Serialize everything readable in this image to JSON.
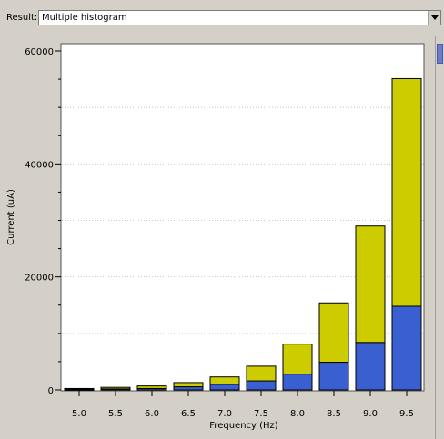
{
  "result": {
    "label": "Result:",
    "selected": "Multiple histogram"
  },
  "colors": {
    "panel_bg": "#d4d0c8",
    "plot_bg": "#ffffff",
    "series_base": "#3a5fd0",
    "series_top": "#cccc00",
    "scroll_thumb": "#6b7fc9"
  },
  "icons": {
    "dropdown": "chevron-down-icon"
  },
  "chart_data": {
    "type": "bar",
    "stacked": true,
    "title": "",
    "xlabel": "Frequency (Hz)",
    "ylabel": "Current (uA)",
    "categories": [
      "5.0",
      "5.5",
      "6.0",
      "6.5",
      "7.0",
      "7.5",
      "8.0",
      "8.5",
      "9.0",
      "9.5"
    ],
    "series": [
      {
        "values": [
          100,
          180,
          250,
          550,
          1000,
          1600,
          2800,
          4900,
          8400,
          14800
        ]
      },
      {
        "values": [
          150,
          270,
          450,
          750,
          1300,
          2600,
          5300,
          10500,
          20600,
          40300
        ]
      }
    ],
    "ylim": [
      0,
      60000
    ],
    "yticks": [
      "0",
      "20000",
      "40000",
      "60000"
    ],
    "grid": true,
    "legend": "none"
  }
}
